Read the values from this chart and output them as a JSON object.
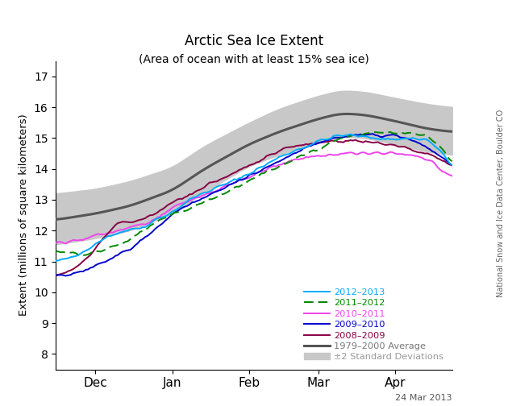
{
  "title": "Arctic Sea Ice Extent",
  "subtitle": "(Area of ocean with at least 15% sea ice)",
  "ylabel": "Extent (millions of square kilometers)",
  "watermark": "National Snow and Ice Data Center, Boulder CO",
  "date_label": "24 Mar 2013",
  "ylim": [
    7.5,
    17.5
  ],
  "yticks": [
    8,
    9,
    10,
    11,
    12,
    13,
    14,
    15,
    16,
    17
  ],
  "xtick_labels": [
    "Dec",
    "Jan",
    "Feb",
    "Mar",
    "Apr"
  ],
  "avg_color": "#555555",
  "std_color": "#C8C8C8",
  "background_color": "#ffffff",
  "color_2012": "#00AAFF",
  "color_2011": "#008800",
  "color_2010": "#EE44EE",
  "color_2009": "#0000CC",
  "color_2008": "#880044"
}
